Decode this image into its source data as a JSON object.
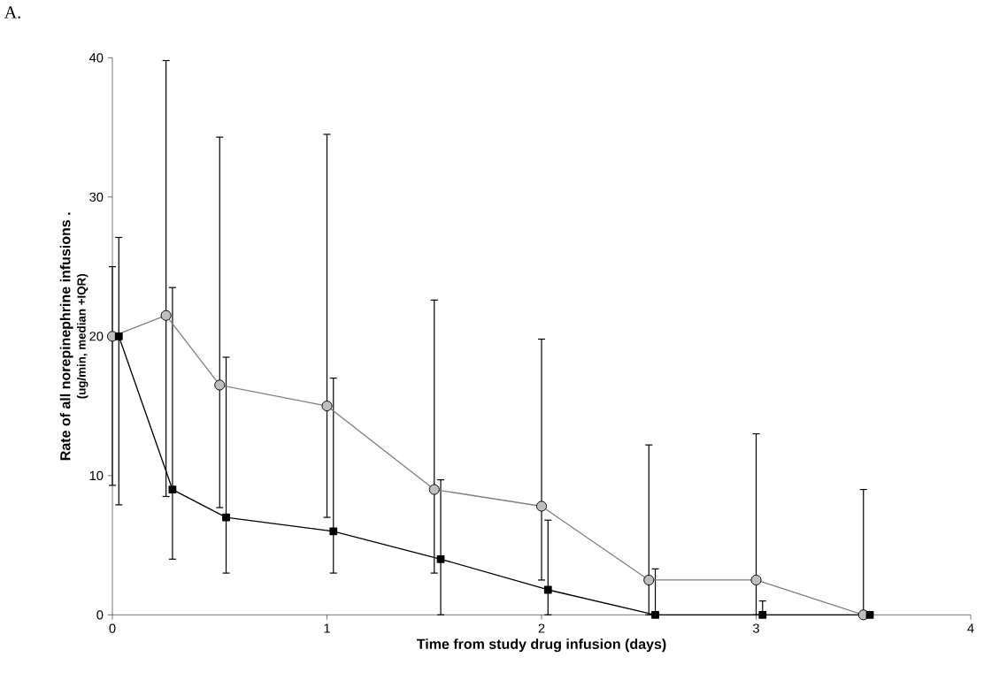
{
  "chart_data": {
    "type": "line",
    "title": "A.",
    "xlabel": "Time from study drug infusion (days)",
    "ylabel": "Rate of all norepinephrine infusions .",
    "annotations": [
      "(ug/min, median +IQR)"
    ],
    "xlim": [
      0,
      4
    ],
    "xticks": [
      0,
      1,
      2,
      3,
      4
    ],
    "ylim": [
      0,
      40
    ],
    "yticks": [
      0,
      10,
      20,
      30,
      40
    ],
    "series": [
      {
        "color": "#808080",
        "marker": "circle",
        "x": [
          0,
          0.25,
          0.5,
          1.0,
          1.5,
          2.0,
          2.5,
          3.0,
          3.5
        ],
        "values": [
          20,
          21.5,
          16.5,
          15,
          9,
          7.8,
          2.5,
          2.5,
          0
        ],
        "errors": [
          [
            9.3,
            25
          ],
          [
            8.5,
            39.8
          ],
          [
            7.7,
            34.3
          ],
          [
            7,
            34.5
          ],
          [
            3,
            22.6
          ],
          [
            2.5,
            19.8
          ],
          [
            0,
            12.2
          ],
          [
            0,
            13
          ],
          [
            0,
            9
          ]
        ]
      },
      {
        "color": "#000000",
        "marker": "square",
        "x": [
          0.03,
          0.28,
          0.53,
          1.03,
          1.53,
          2.03,
          2.53,
          3.03,
          3.53
        ],
        "values": [
          20,
          9,
          7,
          6,
          4,
          1.8,
          0,
          0,
          0
        ],
        "errors": [
          [
            7.9,
            27.1
          ],
          [
            4,
            23.5
          ],
          [
            3,
            18.5
          ],
          [
            3,
            17
          ],
          [
            0,
            9.7
          ],
          [
            0,
            6.8
          ],
          [
            0,
            3.3
          ],
          [
            0,
            1
          ],
          null
        ]
      }
    ]
  }
}
